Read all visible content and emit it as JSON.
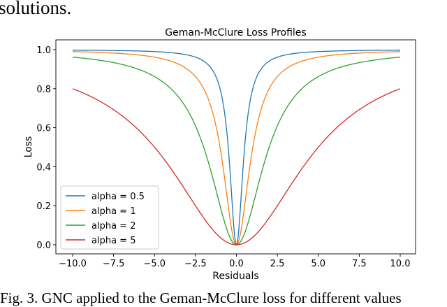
{
  "text_above": "solutions.",
  "caption": "Fig. 3.   GNC applied to the Geman-McClure loss for different values",
  "chart_data": {
    "type": "line",
    "title": "Geman-McClure Loss Profiles",
    "xlabel": "Residuals",
    "ylabel": "Loss",
    "xlim": [
      -10.0,
      10.0
    ],
    "ylim": [
      0.0,
      1.0
    ],
    "xticks": [
      "−10.0",
      "−7.5",
      "−5.0",
      "−2.5",
      "0.0",
      "2.5",
      "5.0",
      "7.5",
      "10.0"
    ],
    "xtick_values": [
      -10,
      -7.5,
      -5,
      -2.5,
      0,
      2.5,
      5,
      7.5,
      10
    ],
    "yticks": [
      "0.0",
      "0.2",
      "0.4",
      "0.6",
      "0.8",
      "1.0"
    ],
    "ytick_values": [
      0,
      0.2,
      0.4,
      0.6,
      0.8,
      1.0
    ],
    "grid": false,
    "legend_position": "lower-left",
    "series": [
      {
        "name": "alpha = 0.5",
        "alpha": 0.5,
        "color": "#1f77b4",
        "x": [
          -10,
          -7.5,
          -5,
          -2.5,
          -1.5,
          -1,
          -0.5,
          0,
          0.5,
          1,
          1.5,
          2.5,
          5,
          7.5,
          10
        ],
        "y": [
          0.9975,
          0.9956,
          0.99,
          0.962,
          0.9,
          0.8,
          0.5,
          0.0,
          0.5,
          0.8,
          0.9,
          0.962,
          0.99,
          0.9956,
          0.9975
        ]
      },
      {
        "name": "alpha = 1",
        "alpha": 1,
        "color": "#ff7f0e",
        "x": [
          -10,
          -7.5,
          -5,
          -2.5,
          -1.5,
          -1,
          -0.5,
          0,
          0.5,
          1,
          1.5,
          2.5,
          5,
          7.5,
          10
        ],
        "y": [
          0.99,
          0.983,
          0.962,
          0.862,
          0.692,
          0.5,
          0.2,
          0.0,
          0.2,
          0.5,
          0.692,
          0.862,
          0.962,
          0.983,
          0.99
        ]
      },
      {
        "name": "alpha = 2",
        "alpha": 2,
        "color": "#2ca02c",
        "x": [
          -10,
          -7.5,
          -5,
          -2.5,
          -1.5,
          -1,
          -0.5,
          0,
          0.5,
          1,
          1.5,
          2.5,
          5,
          7.5,
          10
        ],
        "y": [
          0.962,
          0.934,
          0.862,
          0.61,
          0.36,
          0.2,
          0.059,
          0.0,
          0.059,
          0.2,
          0.36,
          0.61,
          0.862,
          0.934,
          0.962
        ]
      },
      {
        "name": "alpha = 5",
        "alpha": 5,
        "color": "#d62728",
        "x": [
          -10,
          -7.5,
          -5,
          -2.5,
          -1.5,
          -1,
          -0.5,
          0,
          0.5,
          1,
          1.5,
          2.5,
          5,
          7.5,
          10
        ],
        "y": [
          0.8,
          0.692,
          0.5,
          0.2,
          0.083,
          0.038,
          0.01,
          0.0,
          0.01,
          0.038,
          0.083,
          0.2,
          0.5,
          0.692,
          0.8
        ]
      }
    ]
  }
}
